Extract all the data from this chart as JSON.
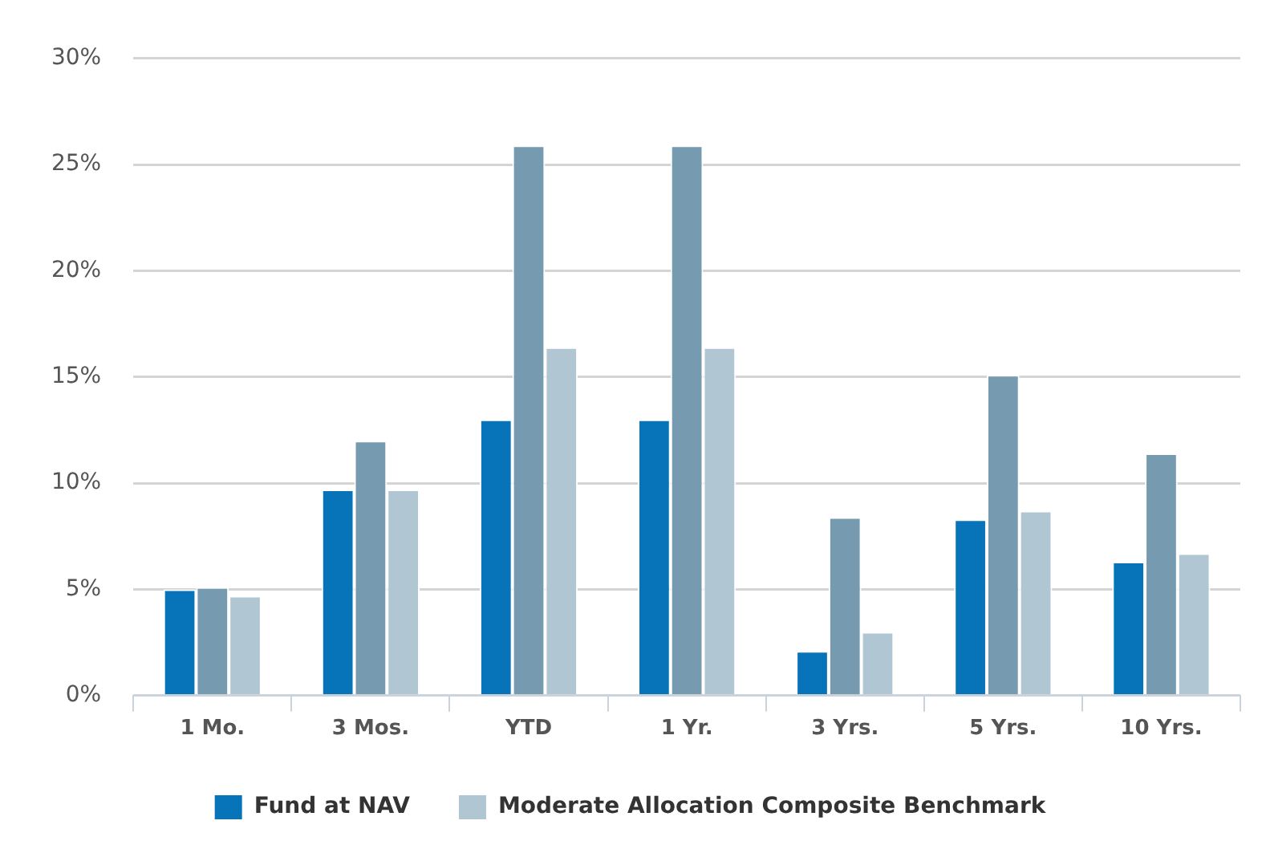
{
  "chart_data": {
    "type": "bar",
    "categories": [
      "1 Mo.",
      "3 Mos.",
      "YTD",
      "1 Yr.",
      "3 Yrs.",
      "5 Yrs.",
      "10 Yrs."
    ],
    "series": [
      {
        "name": "Fund at NAV",
        "color": "#0773b8",
        "values": [
          5.0,
          9.7,
          13.0,
          13.0,
          2.1,
          8.3,
          6.3
        ]
      },
      {
        "color": "#769bb0",
        "values": [
          5.1,
          12.0,
          25.9,
          25.9,
          8.4,
          15.1,
          11.4
        ]
      },
      {
        "name": "Moderate Allocation Composite Benchmark",
        "color": "#b0c7d3",
        "values": [
          4.7,
          9.7,
          16.4,
          16.4,
          3.0,
          8.7,
          6.7
        ]
      }
    ],
    "ylim": [
      0,
      30
    ],
    "yticks": [
      {
        "value": 0,
        "label": "0%"
      },
      {
        "value": 5,
        "label": "5%"
      },
      {
        "value": 10,
        "label": "10%"
      },
      {
        "value": 15,
        "label": "15%"
      },
      {
        "value": 20,
        "label": "20%"
      },
      {
        "value": 25,
        "label": "25%"
      },
      {
        "value": 30,
        "label": "30%"
      }
    ],
    "grid": "y",
    "legend": "bottom"
  }
}
